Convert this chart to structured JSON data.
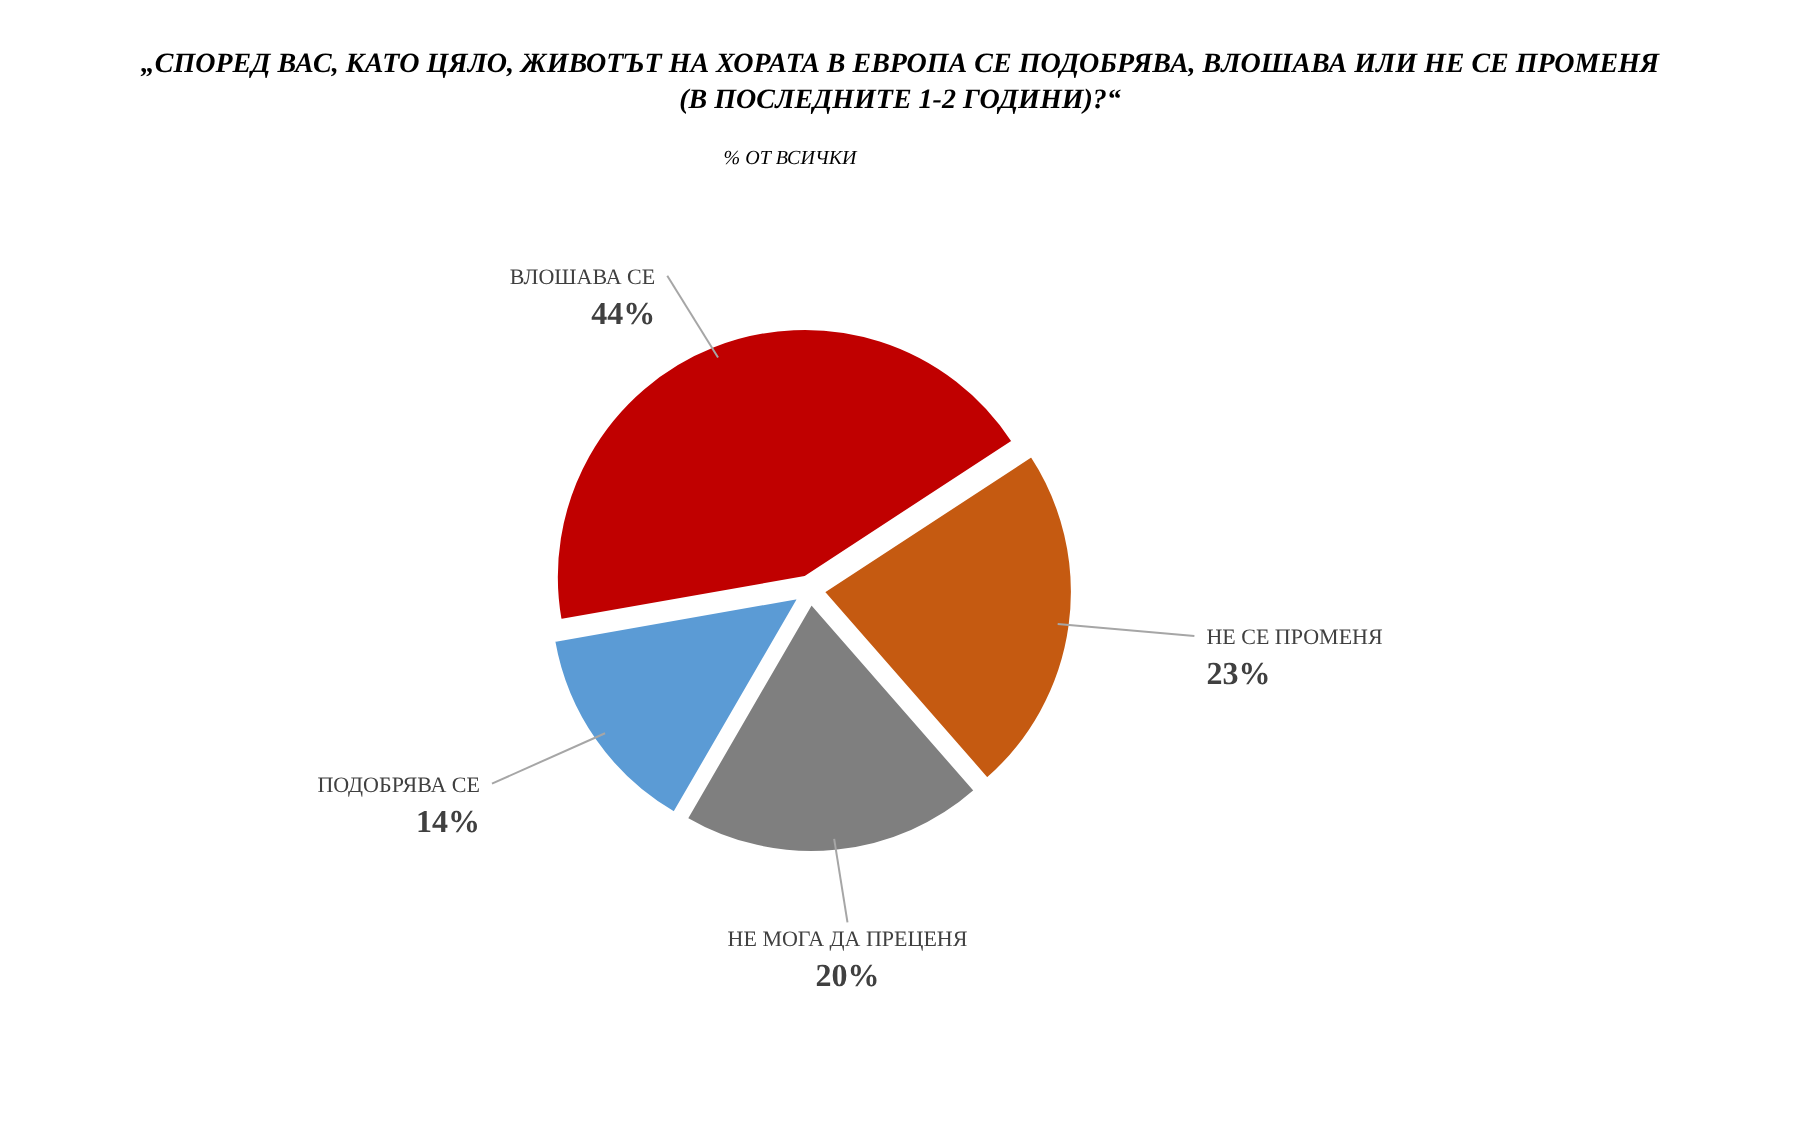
{
  "chart_data": {
    "type": "pie",
    "title": "„СПОРЕД ВАС, КАТО ЦЯЛО, ЖИВОТЪТ НА ХОРАТА В ЕВРОПА СЕ ПОДОБРЯВА, ВЛОШАВА ИЛИ НЕ СЕ ПРОМЕНЯ (В ПОСЛЕДНИТЕ 1-2 ГОДИНИ)?“",
    "subtitle": "% ОТ ВСИЧКИ",
    "categories": [
      "ВЛОШАВА СЕ",
      "НЕ СЕ ПРОМЕНЯ",
      "НЕ МОГА ДА ПРЕЦЕНЯ",
      "ПОДОБРЯВА СЕ"
    ],
    "values": [
      44,
      23,
      20,
      14
    ],
    "colors": [
      "#c00000",
      "#c55a11",
      "#7f7f7f",
      "#5b9bd5"
    ],
    "value_labels": [
      "44%",
      "23%",
      "20%",
      "14%"
    ]
  }
}
